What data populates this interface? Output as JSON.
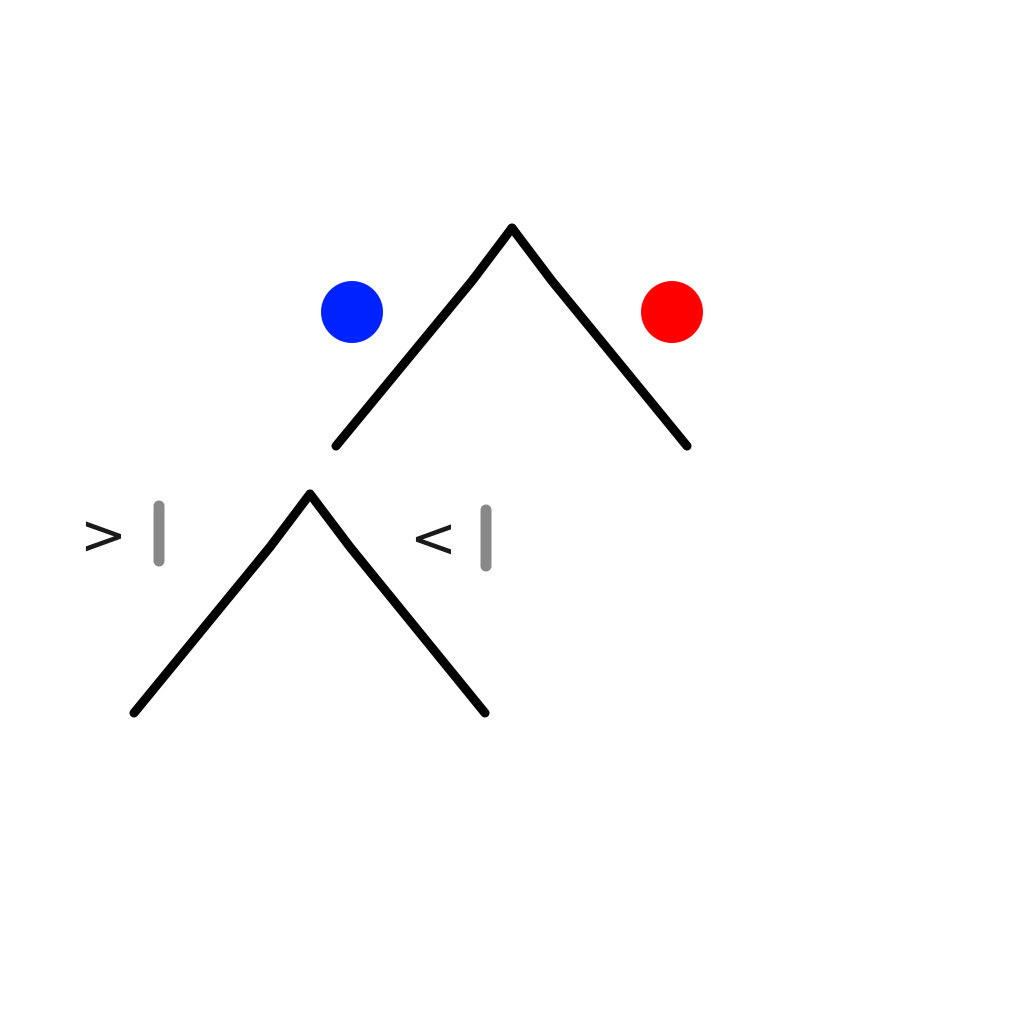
{
  "colors": {
    "background": "#ffffff",
    "tree_edge": "#000000",
    "left_leaf_dot": "#0022ff",
    "right_leaf_dot": "#ff0000",
    "operator_text": "#1a1a1a",
    "bar_mark": "#888888"
  },
  "root_node": {
    "left_marker": "blue-dot",
    "right_marker": "red-dot"
  },
  "child_node": {
    "left_label": {
      "operator": ">",
      "marker": "gray-bar"
    },
    "right_label": {
      "operator": "<",
      "marker": "gray-bar"
    }
  }
}
